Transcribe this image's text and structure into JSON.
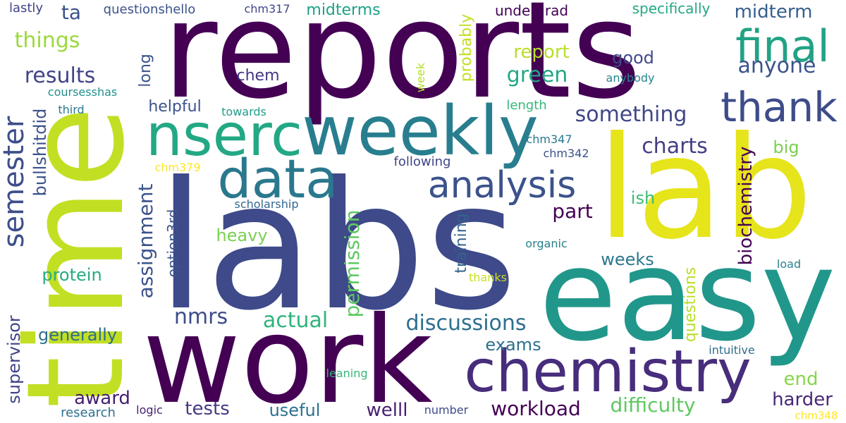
{
  "background": "#ffffff",
  "palette": {
    "purple": "#440154",
    "indigo": "#3b4a8a",
    "slate": "#3e4c8a",
    "blue": "#355e8d",
    "teal": "#287d8e",
    "cyan": "#1f968b",
    "green": "#2fb47c",
    "lightgreen": "#6ccd5a",
    "lime": "#b5de2b",
    "yellow": "#e5e419",
    "yellowgreen": "#c6e132"
  },
  "words": [
    {
      "text": "reports",
      "color": "#440154"
    },
    {
      "text": "labs",
      "color": "#3e4a89"
    },
    {
      "text": "lab",
      "color": "#e6e41a"
    },
    {
      "text": "time",
      "color": "#c2df23"
    },
    {
      "text": "easy",
      "color": "#21978b"
    },
    {
      "text": "work",
      "color": "#440154"
    },
    {
      "text": "chemistry",
      "color": "#472d7b"
    },
    {
      "text": "weekly",
      "color": "#287e8e"
    },
    {
      "text": "nserc",
      "color": "#22a884"
    },
    {
      "text": "data",
      "color": "#2a788e"
    },
    {
      "text": "final",
      "color": "#22a284"
    },
    {
      "text": "thank",
      "color": "#3e4c8a"
    },
    {
      "text": "analysis",
      "color": "#3b528b"
    },
    {
      "text": "semester",
      "color": "#3d4e8a"
    },
    {
      "text": "results",
      "color": "#404387"
    },
    {
      "text": "things",
      "color": "#9bd93c"
    },
    {
      "text": "something",
      "color": "#3f4788"
    },
    {
      "text": "charts",
      "color": "#433e85"
    },
    {
      "text": "report",
      "color": "#b8de29"
    },
    {
      "text": "green",
      "color": "#22a785"
    },
    {
      "text": "anyone",
      "color": "#3a538b"
    },
    {
      "text": "good",
      "color": "#3e4a89"
    },
    {
      "text": "discussions",
      "color": "#2d708e"
    },
    {
      "text": "workload",
      "color": "#440154"
    },
    {
      "text": "difficulty",
      "color": "#5ec962"
    },
    {
      "text": "actual",
      "color": "#2fb47c"
    },
    {
      "text": "nmrs",
      "color": "#3e4c8a"
    },
    {
      "text": "assignment",
      "color": "#3b528b"
    },
    {
      "text": "permission",
      "color": "#5ec962"
    },
    {
      "text": "biochemistry",
      "color": "#440154"
    },
    {
      "text": "bullshitdid",
      "color": "#3b528b"
    },
    {
      "text": "supervisor",
      "color": "#414487"
    },
    {
      "text": "protein",
      "color": "#26ad81"
    },
    {
      "text": "generally",
      "color": "#2e6e8e"
    },
    {
      "text": "award",
      "color": "#481f70"
    },
    {
      "text": "tests",
      "color": "#443a83"
    },
    {
      "text": "welll",
      "color": "#481f70"
    },
    {
      "text": "useful",
      "color": "#2c728e"
    },
    {
      "text": "exams",
      "color": "#2d708e"
    },
    {
      "text": "harder",
      "color": "#482878"
    },
    {
      "text": "end",
      "color": "#86d549"
    },
    {
      "text": "weeks",
      "color": "#2a778e"
    },
    {
      "text": "heavy",
      "color": "#7ad151"
    },
    {
      "text": "part",
      "color": "#440154"
    },
    {
      "text": "ish",
      "color": "#3dbc74"
    },
    {
      "text": "big",
      "color": "#7ad151"
    },
    {
      "text": "training",
      "color": "#33638d"
    },
    {
      "text": "option3rd",
      "color": "#3a548c"
    },
    {
      "text": "helpful",
      "color": "#3b528b"
    },
    {
      "text": "long",
      "color": "#3b528b"
    },
    {
      "text": "chem",
      "color": "#453781"
    },
    {
      "text": "probably",
      "color": "#c2df23"
    },
    {
      "text": "questions",
      "color": "#bade28"
    },
    {
      "text": "midterms",
      "color": "#1fa088"
    },
    {
      "text": "midterm",
      "color": "#355f8d"
    },
    {
      "text": "ta",
      "color": "#3b528b"
    },
    {
      "text": "specifically",
      "color": "#22a884"
    },
    {
      "text": "undergrad",
      "color": "#440154"
    },
    {
      "text": "questionshello",
      "color": "#3b528b"
    },
    {
      "text": "lastly",
      "color": "#414487"
    },
    {
      "text": "chm317",
      "color": "#404688"
    },
    {
      "text": "coursesshas",
      "color": "#21908d"
    },
    {
      "text": "third",
      "color": "#2a788e"
    },
    {
      "text": "towards",
      "color": "#1f9e89"
    },
    {
      "text": "anybody",
      "color": "#25858e"
    },
    {
      "text": "length",
      "color": "#35b779"
    },
    {
      "text": "week",
      "color": "#b4de2c"
    },
    {
      "text": "chm347",
      "color": "#2a788e"
    },
    {
      "text": "chm342",
      "color": "#3b528b"
    },
    {
      "text": "following",
      "color": "#414487"
    },
    {
      "text": "chm379",
      "color": "#fde725"
    },
    {
      "text": "scholarship",
      "color": "#31688e"
    },
    {
      "text": "organic",
      "color": "#26828e"
    },
    {
      "text": "load",
      "color": "#26828e"
    },
    {
      "text": "thanks",
      "color": "#c8e020"
    },
    {
      "text": "intuitive",
      "color": "#2e6e8e"
    },
    {
      "text": "leaning",
      "color": "#35b779"
    },
    {
      "text": "research",
      "color": "#2d708e"
    },
    {
      "text": "logic",
      "color": "#482173"
    },
    {
      "text": "number",
      "color": "#3e4a89"
    },
    {
      "text": "chm348",
      "color": "#fde725"
    }
  ]
}
